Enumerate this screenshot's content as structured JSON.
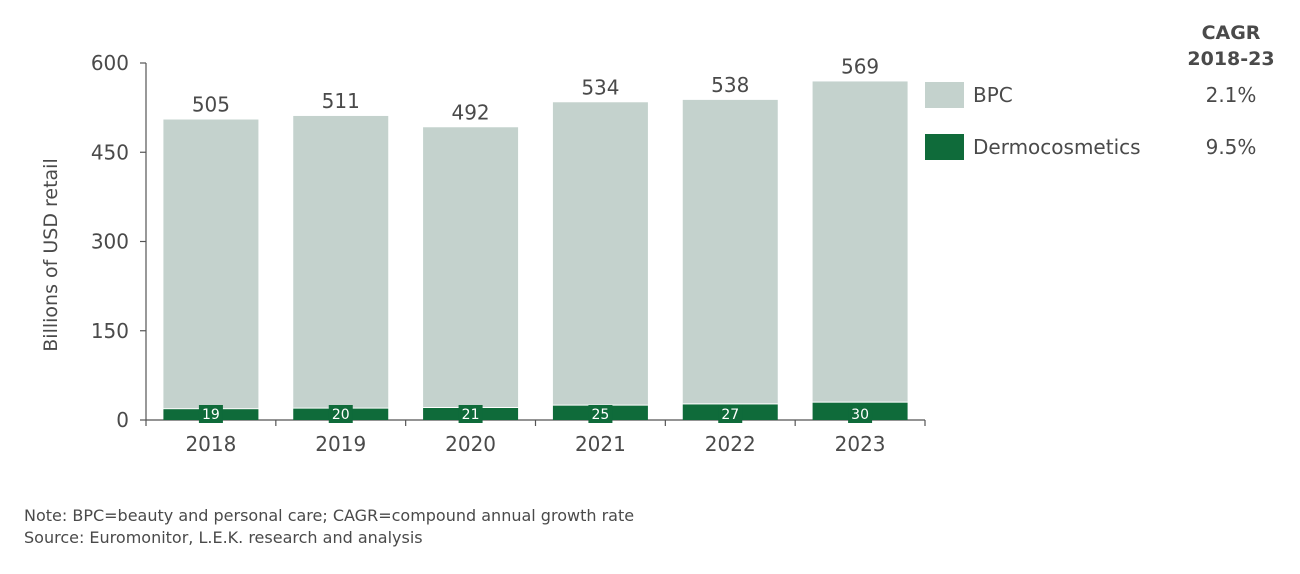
{
  "chart_data": {
    "type": "bar",
    "stacked": true,
    "categories": [
      "2018",
      "2019",
      "2020",
      "2021",
      "2022",
      "2023"
    ],
    "series": [
      {
        "name": "Dermocosmetics",
        "values": [
          19,
          20,
          21,
          25,
          27,
          30
        ],
        "color": "#0f6b3a"
      },
      {
        "name": "BPC",
        "values": [
          486,
          491,
          471,
          509,
          511,
          539
        ],
        "color": "#c4d2cd"
      }
    ],
    "totals": [
      505,
      511,
      492,
      534,
      538,
      569
    ],
    "title": "",
    "xlabel": "",
    "ylabel": "Billions of USD retail",
    "ylim": [
      0,
      600
    ],
    "yticks": [
      0,
      150,
      300,
      450,
      600
    ],
    "grid": false,
    "legend": [
      {
        "name": "BPC",
        "cagr": "2.1%",
        "color": "#c4d2cd"
      },
      {
        "name": "Dermocosmetics",
        "cagr": "9.5%",
        "color": "#0f6b3a"
      }
    ],
    "cagr_header": [
      "CAGR",
      "2018-23"
    ]
  },
  "notes": {
    "note": "Note: BPC=beauty and personal care; CAGR=compound annual growth rate",
    "source": "Source: Euromonitor, L.E.K. research and analysis"
  }
}
